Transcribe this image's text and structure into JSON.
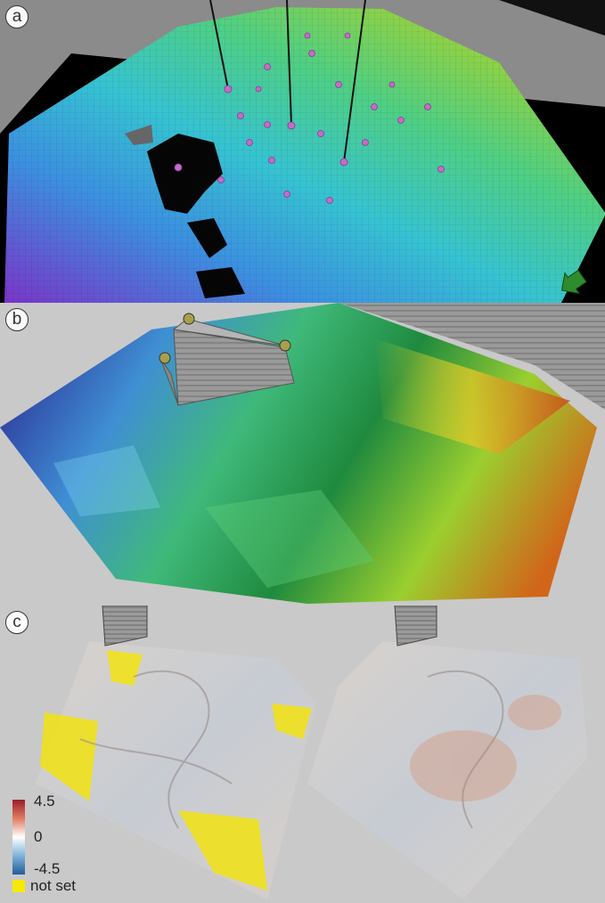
{
  "panels": {
    "a": {
      "label": "a"
    },
    "b": {
      "label": "b"
    },
    "c": {
      "label": "c"
    }
  },
  "legend": {
    "max": "4.5",
    "mid": "0",
    "min": "-4.5",
    "not_set": "not set"
  },
  "colors": {
    "background": "#c9c9c9",
    "well_marker": "#c56bc9",
    "not_set": "#f5ea00",
    "arrow": "#2e8b2e"
  }
}
